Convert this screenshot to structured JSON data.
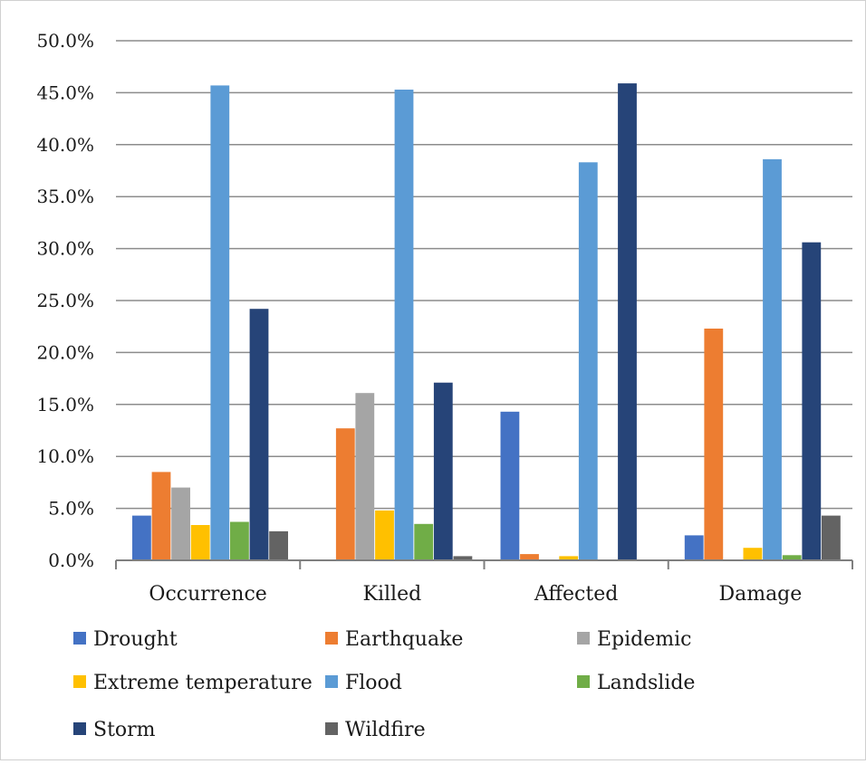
{
  "chart_data": {
    "type": "bar",
    "title": "",
    "xlabel": "",
    "ylabel": "",
    "categories": [
      "Occurrence",
      "Killed",
      "Affected",
      "Damage"
    ],
    "ylim": [
      0,
      50
    ],
    "yticks": [
      "0.0%",
      "5.0%",
      "10.0%",
      "15.0%",
      "20.0%",
      "25.0%",
      "30.0%",
      "35.0%",
      "40.0%",
      "45.0%",
      "50.0%"
    ],
    "grid": true,
    "legend_position": "bottom",
    "series": [
      {
        "name": "Drought",
        "color": "#4472C4",
        "values": [
          4.3,
          0.0,
          14.3,
          2.4
        ]
      },
      {
        "name": "Earthquake",
        "color": "#ED7D31",
        "values": [
          8.5,
          12.7,
          0.6,
          22.3
        ]
      },
      {
        "name": "Epidemic",
        "color": "#A5A5A5",
        "values": [
          7.0,
          16.1,
          0.0,
          0.0
        ]
      },
      {
        "name": "Extreme temperature",
        "color": "#FFC000",
        "values": [
          3.4,
          4.8,
          0.4,
          1.2
        ]
      },
      {
        "name": "Flood",
        "color": "#5B9BD5",
        "values": [
          45.7,
          45.3,
          38.3,
          38.6
        ]
      },
      {
        "name": "Landslide",
        "color": "#70AD47",
        "values": [
          3.7,
          3.5,
          0.0,
          0.5
        ]
      },
      {
        "name": "Storm",
        "color": "#264478",
        "values": [
          24.2,
          17.1,
          45.9,
          30.6
        ]
      },
      {
        "name": "Wildfire",
        "color": "#636363",
        "values": [
          2.8,
          0.4,
          0.0,
          4.3
        ]
      }
    ]
  }
}
